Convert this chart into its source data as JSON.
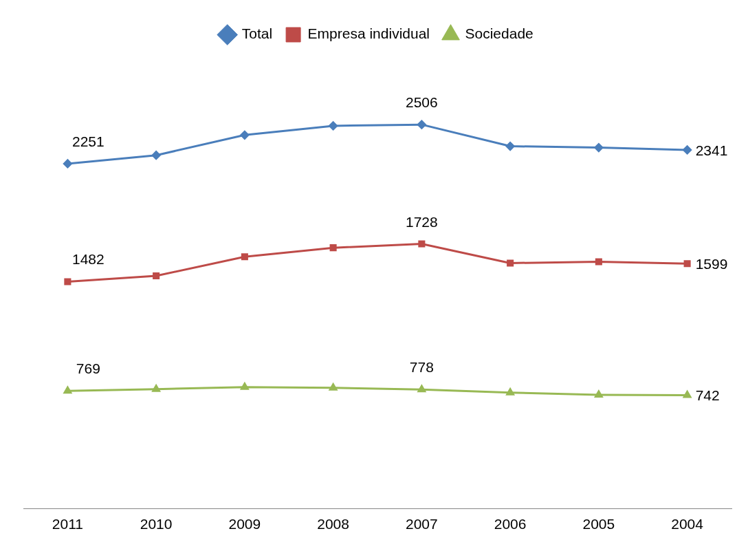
{
  "chart_data": {
    "type": "line",
    "categories": [
      "2011",
      "2010",
      "2009",
      "2008",
      "2007",
      "2006",
      "2005",
      "2004"
    ],
    "series": [
      {
        "name": "Total",
        "color": "#4a7ebb",
        "marker": "diamond",
        "values": [
          2251,
          2306,
          2438,
          2498,
          2506,
          2365,
          2356,
          2341
        ],
        "value_labels": [
          "2251",
          null,
          null,
          null,
          "2506",
          null,
          null,
          "2341"
        ]
      },
      {
        "name": "Empresa individual",
        "color": "#be4b48",
        "marker": "square",
        "values": [
          1482,
          1520,
          1644,
          1703,
          1728,
          1603,
          1612,
          1599
        ],
        "value_labels": [
          "1482",
          null,
          null,
          null,
          "1728",
          null,
          null,
          "1599"
        ]
      },
      {
        "name": "Sociedade",
        "color": "#98b954",
        "marker": "triangle",
        "values": [
          769,
          781,
          794,
          790,
          778,
          758,
          744,
          742
        ],
        "value_labels": [
          "769",
          null,
          null,
          null,
          "778",
          null,
          null,
          "742"
        ]
      }
    ],
    "tick_labels": "x",
    "grid": false,
    "legend": "top"
  }
}
